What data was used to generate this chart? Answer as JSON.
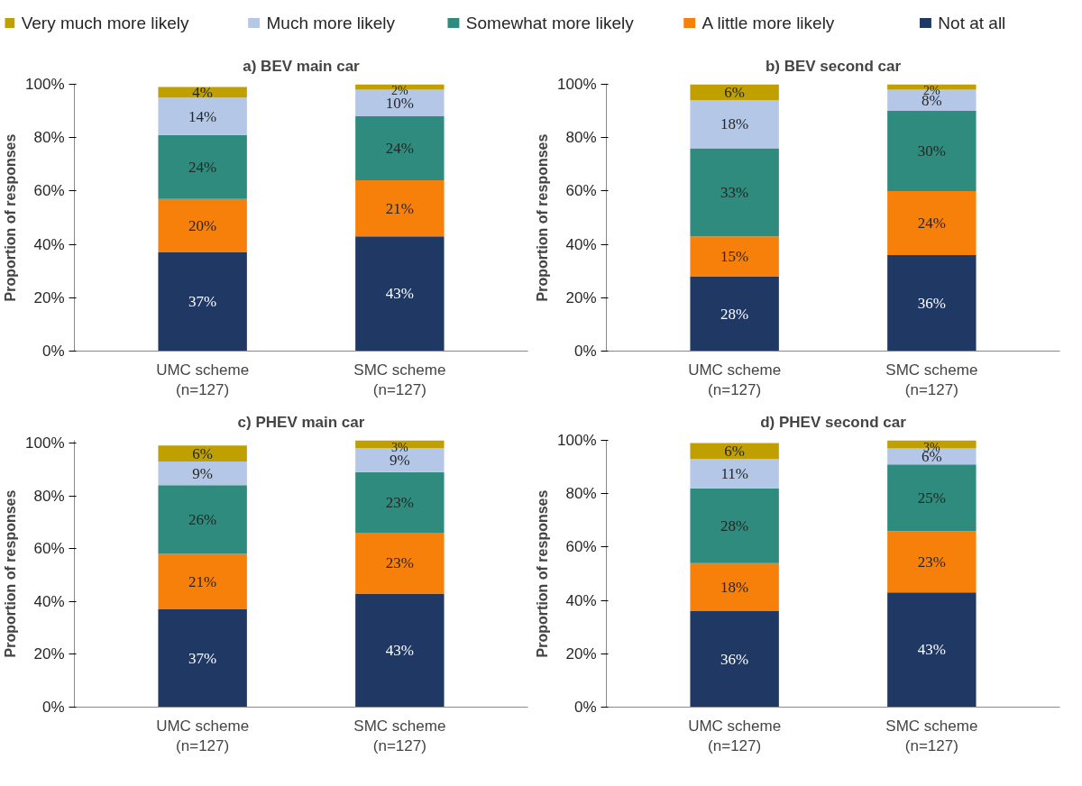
{
  "chart_data": [
    {
      "type": "bar",
      "stacked": true,
      "title": "a) BEV main car",
      "ylabel": "Proportion of responses",
      "categories": [
        "UMC scheme\n(n=127)",
        "SMC scheme\n(n=127)"
      ],
      "ylim": [
        0,
        100
      ],
      "yticks": [
        {
          "value": 0,
          "label": "0%"
        },
        {
          "value": 20,
          "label": "20%"
        },
        {
          "value": 40,
          "label": "40%"
        },
        {
          "value": 60,
          "label": "60%"
        },
        {
          "value": 80,
          "label": "80%"
        },
        {
          "value": 100,
          "label": "100%"
        }
      ],
      "grid": false,
      "legend": "top",
      "series": [
        {
          "name": "Not at all",
          "color": "#1f3864",
          "values": [
            37,
            43
          ],
          "value_labels": [
            "37%",
            "43%"
          ]
        },
        {
          "name": "A little more likely",
          "color": "#f7800a",
          "values": [
            20,
            21
          ],
          "value_labels": [
            "20%",
            "21%"
          ]
        },
        {
          "name": "Somewhat more likely",
          "color": "#2e8b7d",
          "values": [
            24,
            24
          ],
          "value_labels": [
            "24%",
            "24%"
          ]
        },
        {
          "name": "Much more likely",
          "color": "#b4c7e7",
          "values": [
            14,
            10
          ],
          "value_labels": [
            "14%",
            "10%"
          ]
        },
        {
          "name": "Very much more likely",
          "color": "#bfa000",
          "values": [
            4,
            2
          ],
          "value_labels": [
            "4%",
            "2%"
          ]
        }
      ]
    },
    {
      "type": "bar",
      "stacked": true,
      "title": "b) BEV second car",
      "ylabel": "Proportion of responses",
      "categories": [
        "UMC scheme\n(n=127)",
        "SMC scheme\n(n=127)"
      ],
      "ylim": [
        0,
        100
      ],
      "yticks": [
        {
          "value": 0,
          "label": "0%"
        },
        {
          "value": 20,
          "label": "20%"
        },
        {
          "value": 40,
          "label": "40%"
        },
        {
          "value": 60,
          "label": "60%"
        },
        {
          "value": 80,
          "label": "80%"
        },
        {
          "value": 100,
          "label": "100%"
        }
      ],
      "grid": false,
      "series": [
        {
          "color": "#1f3864",
          "values": [
            28,
            36
          ],
          "value_labels": [
            "28%",
            "36%"
          ]
        },
        {
          "color": "#f7800a",
          "values": [
            15,
            24
          ],
          "value_labels": [
            "15%",
            "24%"
          ]
        },
        {
          "color": "#2e8b7d",
          "values": [
            33,
            30
          ],
          "value_labels": [
            "33%",
            "30%"
          ]
        },
        {
          "color": "#b4c7e7",
          "values": [
            18,
            8
          ],
          "value_labels": [
            "18%",
            "8%"
          ]
        },
        {
          "color": "#bfa000",
          "values": [
            6,
            2
          ],
          "value_labels": [
            "6%",
            "2%"
          ]
        }
      ]
    },
    {
      "type": "bar",
      "stacked": true,
      "title": "c) PHEV main car",
      "ylabel": "Proportion of responses",
      "categories": [
        "UMC scheme\n(n=127)",
        "SMC scheme\n(n=127)"
      ],
      "ylim": [
        0,
        101
      ],
      "yticks": [
        {
          "value": 0,
          "label": "0%"
        },
        {
          "value": 20,
          "label": "20%"
        },
        {
          "value": 40,
          "label": "40%"
        },
        {
          "value": 60,
          "label": "60%"
        },
        {
          "value": 80,
          "label": "80%"
        },
        {
          "value": 100,
          "label": "100%"
        }
      ],
      "grid": false,
      "series": [
        {
          "color": "#1f3864",
          "values": [
            37,
            43
          ],
          "value_labels": [
            "37%",
            "43%"
          ]
        },
        {
          "color": "#f7800a",
          "values": [
            21,
            23
          ],
          "value_labels": [
            "21%",
            "23%"
          ]
        },
        {
          "color": "#2e8b7d",
          "values": [
            26,
            23
          ],
          "value_labels": [
            "26%",
            "23%"
          ]
        },
        {
          "color": "#b4c7e7",
          "values": [
            9,
            9
          ],
          "value_labels": [
            "9%",
            "9%"
          ]
        },
        {
          "color": "#bfa000",
          "values": [
            6,
            3
          ],
          "value_labels": [
            "6%",
            "3%"
          ]
        }
      ]
    },
    {
      "type": "bar",
      "stacked": true,
      "title": "d) PHEV second car",
      "ylabel": "Proportion of responses",
      "categories": [
        "UMC scheme\n(n=127)",
        "SMC scheme\n(n=127)"
      ],
      "ylim": [
        0,
        100
      ],
      "yticks": [
        {
          "value": 0,
          "label": "0%"
        },
        {
          "value": 20,
          "label": "20%"
        },
        {
          "value": 40,
          "label": "40%"
        },
        {
          "value": 60,
          "label": "60%"
        },
        {
          "value": 80,
          "label": "80%"
        },
        {
          "value": 100,
          "label": "100%"
        }
      ],
      "grid": false,
      "series": [
        {
          "color": "#1f3864",
          "values": [
            36,
            43
          ],
          "value_labels": [
            "36%",
            "43%"
          ]
        },
        {
          "color": "#f7800a",
          "values": [
            18,
            23
          ],
          "value_labels": [
            "18%",
            "23%"
          ]
        },
        {
          "color": "#2e8b7d",
          "values": [
            28,
            25
          ],
          "value_labels": [
            "28%",
            "25%"
          ]
        },
        {
          "color": "#b4c7e7",
          "values": [
            11,
            6
          ],
          "value_labels": [
            "11%",
            "6%"
          ]
        },
        {
          "color": "#bfa000",
          "values": [
            6,
            3
          ],
          "value_labels": [
            "6%",
            "3%"
          ]
        }
      ]
    }
  ]
}
